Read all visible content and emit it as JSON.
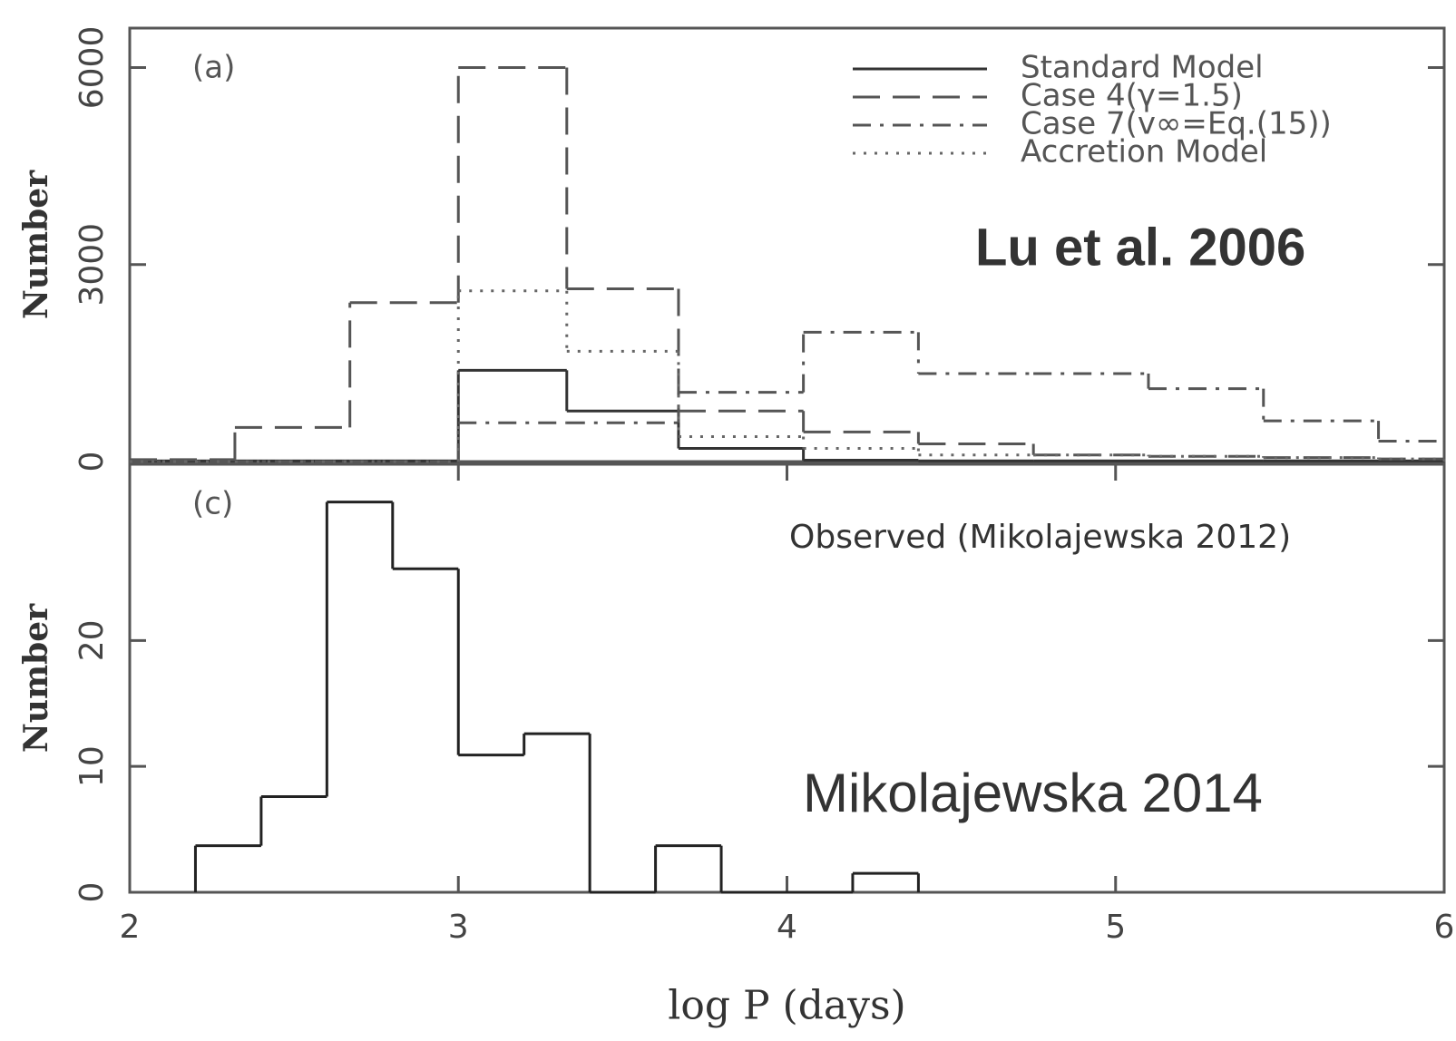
{
  "chart_data": [
    {
      "type": "histogram",
      "panel_label": "(a)",
      "annotation": "Lu et al. 2006",
      "annotation_color": "#ff0000",
      "ylabel": "Number",
      "xlim": [
        2,
        6
      ],
      "ylim": [
        0,
        6600
      ],
      "yticks": [
        0,
        3000,
        6000
      ],
      "bins": [
        2.0,
        2.32,
        2.67,
        3.0,
        3.33,
        3.67,
        4.05,
        4.4,
        4.75,
        5.1,
        5.45,
        5.8,
        6.0
      ],
      "series": [
        {
          "name": "Standard Model",
          "color": "#333333",
          "style": "solid",
          "values": [
            10,
            10,
            10,
            1390,
            770,
            200,
            20,
            10,
            10,
            10,
            10,
            10
          ]
        },
        {
          "name": "Case 4(γ=1.5)",
          "color": "#555555",
          "style": "dashed",
          "values": [
            30,
            520,
            2420,
            6000,
            2630,
            770,
            450,
            270,
            100,
            80,
            60,
            40
          ]
        },
        {
          "name": "Case 7(v∞=Eq.(15))",
          "color": "#555555",
          "style": "dashdot",
          "values": [
            0,
            0,
            0,
            590,
            590,
            1055,
            1970,
            1340,
            1340,
            1110,
            620,
            310
          ]
        },
        {
          "name": "Accretion Model",
          "color": "#666666",
          "style": "dotted",
          "values": [
            0,
            0,
            0,
            2600,
            1680,
            380,
            200,
            100,
            100,
            80,
            60,
            40
          ]
        }
      ]
    },
    {
      "type": "histogram",
      "panel_label": "(c)",
      "subtitle": "Observed (Mikolajewska 2012)",
      "annotation": "Mikolajewska 2014",
      "annotation_color": "#1a8c1a",
      "ylabel": "Number",
      "xlabel": "log P (days)",
      "xlim": [
        2,
        6
      ],
      "xticks": [
        2,
        3,
        4,
        5,
        6
      ],
      "ylim": [
        0,
        34
      ],
      "yticks": [
        0,
        10,
        20
      ],
      "bins": [
        2.2,
        2.4,
        2.6,
        2.8,
        3.0,
        3.2,
        3.4,
        3.6,
        3.8,
        4.0,
        4.2,
        4.4
      ],
      "values": [
        3.7,
        7.6,
        31,
        25.7,
        10.9,
        12.6,
        0,
        3.7,
        0,
        0,
        1.5
      ],
      "color": "#222222"
    }
  ]
}
